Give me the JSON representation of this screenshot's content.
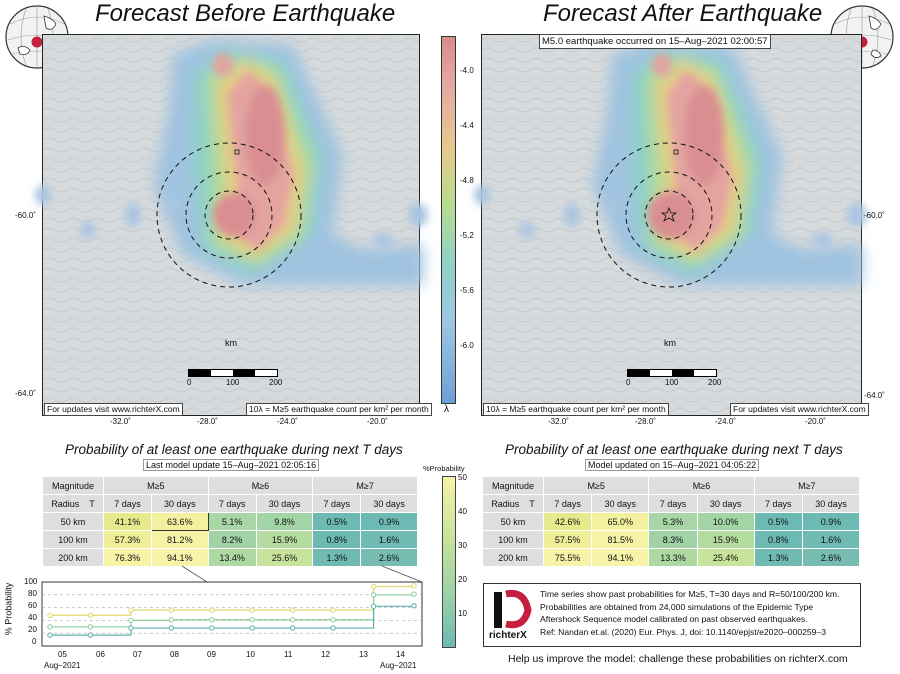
{
  "left": {
    "title": "Forecast Before Earthquake",
    "updates_note": "For updates visit www.richterX.com",
    "count_note": "10λ = M≥5 earthquake count per km² per month",
    "km_label": "km",
    "scale_ticks": [
      "0",
      "100",
      "200"
    ],
    "lon_ticks": [
      "-32.0˚",
      "-28.0˚",
      "-24.0˚",
      "-20.0˚"
    ],
    "lat_ticks": [
      "-60.0˚",
      "-64.0˚"
    ]
  },
  "right": {
    "title": "Forecast After Earthquake",
    "event_note": "M5.0 earthquake occurred on 15–Aug–2021 02:00:57",
    "updates_note": "For updates visit www.richterX.com",
    "count_note": "10λ = M≥5 earthquake count per km² per month",
    "km_label": "km",
    "scale_ticks": [
      "0",
      "100",
      "200"
    ],
    "lon_ticks": [
      "-32.0˚",
      "-28.0˚",
      "-24.0˚",
      "-20.0˚"
    ],
    "lat_ticks": [
      "-60.0˚",
      "-64.0˚"
    ]
  },
  "colorbar": {
    "ticks": [
      "-4.0",
      "-4.4",
      "-4.8",
      "-5.2",
      "-5.6",
      "-6.0"
    ],
    "label": "λ"
  },
  "prob_left": {
    "title": "Probability of at least one earthquake during next T days",
    "update": "Last model update 15–Aug–2021 02:05:16",
    "head_mag": "Magnitude",
    "head_radius": "Radius",
    "head_T": "T",
    "mags": [
      "M≥5",
      "M≥6",
      "M≥7"
    ],
    "periods": [
      "7 days",
      "30 days",
      "7 days",
      "30 days",
      "7 days",
      "30 days"
    ],
    "rows": [
      {
        "radius": "50 km",
        "vals": [
          "41.1%",
          "63.6%",
          "5.1%",
          "9.8%",
          "0.5%",
          "0.9%"
        ]
      },
      {
        "radius": "100 km",
        "vals": [
          "57.3%",
          "81.2%",
          "8.2%",
          "15.9%",
          "0.8%",
          "1.6%"
        ]
      },
      {
        "radius": "200 km",
        "vals": [
          "76.3%",
          "94.1%",
          "13.4%",
          "25.6%",
          "1.3%",
          "2.6%"
        ]
      }
    ]
  },
  "prob_right": {
    "title": "Probability of at least one earthquake during next T days",
    "update": "Model updated on 15–Aug–2021 04:05:22",
    "head_mag": "Magnitude",
    "head_radius": "Radius",
    "head_T": "T",
    "mags": [
      "M≥5",
      "M≥6",
      "M≥7"
    ],
    "periods": [
      "7 days",
      "30 days",
      "7 days",
      "30 days",
      "7 days",
      "30 days"
    ],
    "rows": [
      {
        "radius": "50 km",
        "vals": [
          "42.6%",
          "65.0%",
          "5.3%",
          "10.0%",
          "0.5%",
          "0.9%"
        ]
      },
      {
        "radius": "100 km",
        "vals": [
          "57.5%",
          "81.5%",
          "8.3%",
          "15.9%",
          "0.8%",
          "1.6%"
        ]
      },
      {
        "radius": "200 km",
        "vals": [
          "75.5%",
          "94.1%",
          "13.3%",
          "25.4%",
          "1.3%",
          "2.6%"
        ]
      }
    ]
  },
  "pct_bar": {
    "label": "%Probability",
    "ticks": [
      "50",
      "40",
      "30",
      "20",
      "10"
    ]
  },
  "timeseries": {
    "ylabel": "% Probability",
    "yticks": [
      "100",
      "80",
      "60",
      "40",
      "20",
      "0"
    ],
    "xticks": [
      "05",
      "06",
      "07",
      "08",
      "09",
      "10",
      "11",
      "12",
      "13",
      "14"
    ],
    "xstart": "Aug–2021",
    "xend": "Aug–2021"
  },
  "info": {
    "lines": [
      "Time series show past probabilities for M≥5, T=30 days and R=50/100/200 km.",
      "Probabilities are obtained from 24,000 simulations of the Epidemic Type",
      "Aftershock Sequence model calibrated on past observed earthquakes.",
      "Ref: Nandan et.al. (2020) Eur. Phys. J, doi: 10.1140/epjst/e2020–000259–3"
    ],
    "logo_text": "richterX"
  },
  "footer": "Help us improve the model: challenge these probabilities on richterX.com",
  "chart_data": {
    "type": "line",
    "x": [
      "05",
      "06",
      "07",
      "08",
      "09",
      "10",
      "11",
      "12",
      "13",
      "14"
    ],
    "series": [
      {
        "values": [
          48,
          48,
          56,
          56,
          56,
          56,
          56,
          56,
          93,
          94
        ]
      },
      {
        "values": [
          30,
          30,
          40,
          41,
          41,
          41,
          41,
          41,
          80,
          81
        ]
      },
      {
        "values": [
          17,
          17,
          28,
          28,
          28,
          28,
          28,
          28,
          62,
          63
        ]
      }
    ],
    "ylim": [
      0,
      100
    ]
  }
}
